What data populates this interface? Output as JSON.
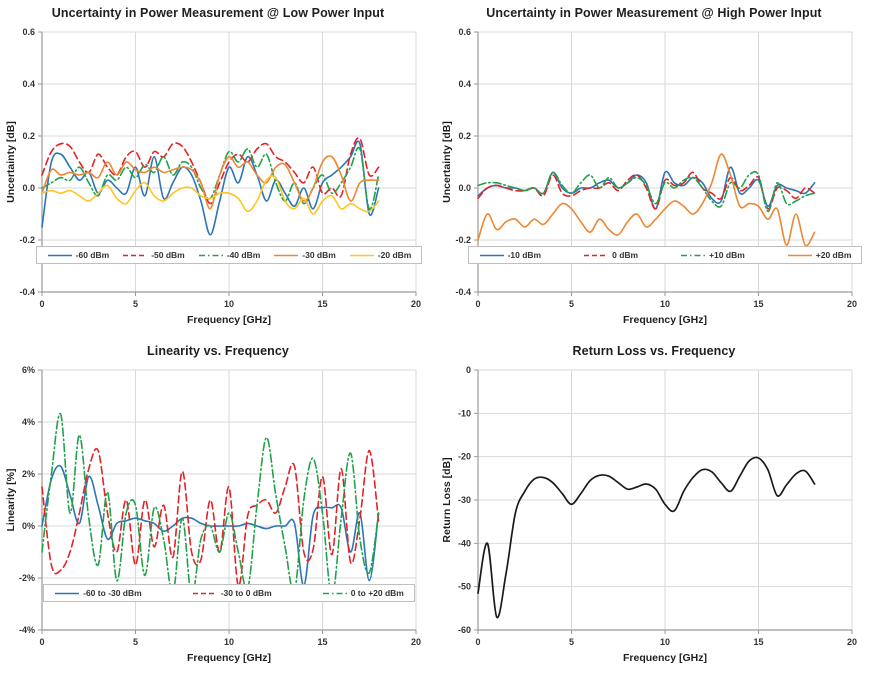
{
  "page": {
    "background": "#ffffff"
  },
  "style": {
    "grid_color": "#d9d9d9",
    "axis_color": "#9a9a9a",
    "tick_text_color": "#333333",
    "title_color": "#1f1f1f",
    "legend_border_color": "#bfbfbf",
    "series_palette": {
      "blue": "#2e75b6",
      "red": "#e32227",
      "green": "#21a24b",
      "orange": "#ed8733",
      "yellow": "#ffc425",
      "black": "#1a1a1a"
    }
  },
  "chart_data": [
    {
      "id": "uncertainty-low-power",
      "type": "line",
      "title": "Uncertainty in Power Measurement @ Low Power Input",
      "xlabel": "Frequency [GHz]",
      "ylabel": "Uncertainty [dB]",
      "xlim": [
        0,
        20
      ],
      "ylim": [
        -0.4,
        0.6
      ],
      "xticks": [
        0,
        5,
        10,
        15,
        20
      ],
      "xtick_labels": [
        "0",
        "5",
        "10",
        "15",
        "20"
      ],
      "yticks": [
        0.6,
        0.4,
        0.2,
        0.0,
        -0.2,
        -0.4
      ],
      "ytick_labels": [
        "0.6",
        "0.4",
        "0.2",
        "0.0",
        "-0.2",
        "-0.4"
      ],
      "grid": true,
      "legend": true,
      "legend_position": "bottom-inside",
      "x": [
        0,
        0.5,
        1,
        1.5,
        2,
        2.5,
        3,
        3.5,
        4,
        4.5,
        5,
        5.5,
        6,
        6.5,
        7,
        7.5,
        8,
        8.5,
        9,
        9.5,
        10,
        10.5,
        11,
        11.5,
        12,
        12.5,
        13,
        13.5,
        14,
        14.5,
        15,
        15.5,
        16,
        16.5,
        17,
        17.5,
        18
      ],
      "series": [
        {
          "name": "-60 dBm",
          "color": "blue",
          "dash": "solid",
          "values": [
            -0.15,
            0.1,
            0.13,
            0.08,
            0.03,
            0.06,
            -0.02,
            0.03,
            0.0,
            -0.02,
            0.08,
            -0.03,
            0.12,
            -0.04,
            0.02,
            0.08,
            0.05,
            -0.05,
            -0.18,
            -0.05,
            0.08,
            0.02,
            0.12,
            0.05,
            -0.05,
            0.03,
            -0.02,
            -0.07,
            0.0,
            -0.08,
            0.02,
            0.05,
            0.08,
            0.12,
            0.17,
            -0.1,
            0.0
          ]
        },
        {
          "name": "-50 dBm",
          "color": "red",
          "dash": "dashed",
          "values": [
            0.05,
            0.14,
            0.17,
            0.16,
            0.1,
            0.06,
            0.13,
            0.08,
            0.05,
            0.12,
            0.14,
            0.08,
            0.14,
            0.12,
            0.17,
            0.16,
            0.1,
            0.02,
            -0.06,
            0.02,
            0.1,
            0.13,
            0.1,
            0.15,
            0.17,
            0.12,
            0.1,
            0.06,
            0.02,
            0.08,
            -0.02,
            0.0,
            -0.03,
            0.13,
            0.19,
            0.05,
            0.08
          ]
        },
        {
          "name": "-40 dBm",
          "color": "green",
          "dash": "dashdot",
          "values": [
            0.0,
            0.02,
            0.04,
            0.03,
            0.08,
            0.02,
            -0.03,
            0.05,
            0.03,
            0.08,
            0.04,
            0.09,
            0.06,
            0.12,
            0.05,
            0.1,
            0.08,
            0.0,
            -0.04,
            0.05,
            0.14,
            0.1,
            0.15,
            0.08,
            0.13,
            0.02,
            -0.05,
            0.02,
            -0.06,
            0.0,
            0.05,
            -0.02,
            0.02,
            0.08,
            0.15,
            -0.08,
            0.05
          ]
        },
        {
          "name": "-30 dBm",
          "color": "orange",
          "dash": "solid",
          "values": [
            -0.02,
            0.07,
            0.05,
            0.06,
            0.05,
            0.06,
            0.04,
            0.1,
            0.05,
            0.1,
            0.07,
            0.06,
            0.08,
            0.06,
            0.07,
            0.08,
            0.07,
            0.02,
            -0.08,
            0.05,
            0.12,
            0.08,
            0.1,
            0.05,
            0.02,
            0.08,
            0.09,
            0.02,
            -0.05,
            0.0,
            0.1,
            0.12,
            0.05,
            -0.05,
            0.02,
            0.03,
            0.03
          ]
        },
        {
          "name": "-20 dBm",
          "color": "yellow",
          "dash": "solid",
          "values": [
            -0.02,
            -0.01,
            -0.02,
            -0.01,
            -0.03,
            -0.05,
            -0.02,
            0.01,
            -0.04,
            -0.06,
            -0.01,
            0.02,
            -0.03,
            -0.05,
            -0.02,
            0.0,
            0.0,
            -0.03,
            -0.04,
            -0.02,
            -0.02,
            -0.04,
            -0.09,
            -0.05,
            0.03,
            0.04,
            -0.05,
            -0.08,
            -0.04,
            -0.1,
            -0.05,
            -0.03,
            -0.08,
            -0.06,
            -0.08,
            -0.09,
            -0.05
          ]
        }
      ]
    },
    {
      "id": "uncertainty-high-power",
      "type": "line",
      "title": "Uncertainty in Power Measurement @ High Power Input",
      "xlabel": "Frequency [GHz]",
      "ylabel": "Uncertainty [dB]",
      "xlim": [
        0,
        20
      ],
      "ylim": [
        -0.4,
        0.6
      ],
      "xticks": [
        0,
        5,
        10,
        15,
        20
      ],
      "xtick_labels": [
        "0",
        "5",
        "10",
        "15",
        "20"
      ],
      "yticks": [
        0.6,
        0.4,
        0.2,
        0.0,
        -0.2,
        -0.4
      ],
      "ytick_labels": [
        "0.6",
        "0.4",
        "0.2",
        "0.0",
        "-0.2",
        "-0.4"
      ],
      "grid": true,
      "legend": true,
      "legend_position": "bottom-inside",
      "x": [
        0,
        0.5,
        1,
        1.5,
        2,
        2.5,
        3,
        3.5,
        4,
        4.5,
        5,
        5.5,
        6,
        6.5,
        7,
        7.5,
        8,
        8.5,
        9,
        9.5,
        10,
        10.5,
        11,
        11.5,
        12,
        12.5,
        13,
        13.5,
        14,
        14.5,
        15,
        15.5,
        16,
        16.5,
        17,
        17.5,
        18
      ],
      "series": [
        {
          "name": "-10 dBm",
          "color": "blue",
          "dash": "solid",
          "values": [
            -0.03,
            0.0,
            0.01,
            0.0,
            0.0,
            -0.01,
            0.0,
            -0.02,
            0.06,
            0.0,
            -0.02,
            0.0,
            0.0,
            0.02,
            0.03,
            0.0,
            0.02,
            0.05,
            0.02,
            -0.08,
            0.06,
            0.02,
            0.01,
            0.04,
            0.02,
            -0.04,
            -0.05,
            0.08,
            -0.02,
            0.0,
            0.03,
            -0.07,
            0.01,
            0.0,
            -0.01,
            -0.02,
            0.02
          ]
        },
        {
          "name": "0 dBm",
          "color": "red",
          "dash": "dashed",
          "values": [
            -0.04,
            0.0,
            0.01,
            0.0,
            -0.01,
            -0.01,
            0.0,
            -0.03,
            0.05,
            -0.02,
            -0.03,
            -0.01,
            0.0,
            0.0,
            0.02,
            -0.01,
            0.03,
            0.05,
            0.0,
            -0.08,
            0.03,
            0.01,
            0.02,
            0.06,
            0.0,
            -0.02,
            -0.04,
            0.04,
            -0.01,
            0.01,
            0.04,
            -0.08,
            0.0,
            -0.01,
            -0.04,
            0.0,
            -0.02
          ]
        },
        {
          "name": "+10 dBm",
          "color": "green",
          "dash": "dashdot",
          "values": [
            0.01,
            0.02,
            0.02,
            0.01,
            0.0,
            -0.01,
            0.0,
            -0.02,
            0.06,
            0.01,
            -0.02,
            0.02,
            0.05,
            0.0,
            0.04,
            0.0,
            0.02,
            0.04,
            0.01,
            -0.06,
            0.02,
            0.0,
            0.03,
            0.04,
            0.0,
            -0.05,
            -0.07,
            0.02,
            0.0,
            0.05,
            0.05,
            -0.09,
            0.02,
            -0.06,
            -0.05,
            -0.03,
            -0.02
          ]
        },
        {
          "name": "+20 dBm",
          "color": "orange",
          "dash": "solid",
          "values": [
            -0.2,
            -0.1,
            -0.16,
            -0.13,
            -0.12,
            -0.15,
            -0.12,
            -0.14,
            -0.1,
            -0.06,
            -0.08,
            -0.13,
            -0.17,
            -0.12,
            -0.16,
            -0.18,
            -0.13,
            -0.1,
            -0.15,
            -0.12,
            -0.08,
            -0.05,
            -0.07,
            -0.1,
            -0.06,
            0.02,
            0.13,
            0.05,
            -0.07,
            -0.06,
            -0.07,
            -0.12,
            -0.08,
            -0.22,
            -0.1,
            -0.22,
            -0.17
          ]
        }
      ]
    },
    {
      "id": "linearity",
      "type": "line",
      "title": "Linearity vs. Frequency",
      "xlabel": "Frequency [GHz]",
      "ylabel": "Linearity [%]",
      "xlim": [
        0,
        20
      ],
      "ylim": [
        -4,
        6
      ],
      "xticks": [
        0,
        5,
        10,
        15,
        20
      ],
      "xtick_labels": [
        "0",
        "5",
        "10",
        "15",
        "20"
      ],
      "yticks": [
        6,
        4,
        2,
        0,
        -2,
        -4
      ],
      "ytick_labels": [
        "6%",
        "4%",
        "2%",
        "0%",
        "-2%",
        "-4%"
      ],
      "grid": true,
      "legend": true,
      "legend_position": "bottom-inside",
      "x": [
        0,
        0.5,
        1,
        1.5,
        2,
        2.5,
        3,
        3.5,
        4,
        4.5,
        5,
        5.5,
        6,
        6.5,
        7,
        7.5,
        8,
        8.5,
        9,
        9.5,
        10,
        10.5,
        11,
        11.5,
        12,
        12.5,
        13,
        13.5,
        14,
        14.5,
        15,
        15.5,
        16,
        16.5,
        17,
        17.5,
        18
      ],
      "series": [
        {
          "name": "-60 to -30 dBm",
          "color": "blue",
          "dash": "solid",
          "values": [
            0.0,
            1.8,
            2.3,
            1.2,
            0.1,
            1.9,
            0.8,
            -0.5,
            0.1,
            0.2,
            0.3,
            0.2,
            0.1,
            -0.2,
            0.0,
            0.3,
            0.3,
            0.1,
            0.0,
            0.0,
            0.0,
            0.0,
            0.1,
            0.0,
            -0.1,
            0.0,
            0.0,
            0.1,
            -2.3,
            0.4,
            0.7,
            0.7,
            0.7,
            -1.0,
            0.5,
            -2.1,
            0.5
          ]
        },
        {
          "name": "-30 to 0 dBm",
          "color": "red",
          "dash": "dashed",
          "values": [
            1.5,
            -1.5,
            -1.7,
            -1.0,
            0.5,
            2.2,
            2.9,
            0.5,
            -1.0,
            1.0,
            -1.5,
            1.0,
            -0.8,
            0.8,
            -1.2,
            2.1,
            -1.0,
            -1.3,
            1.0,
            -1.0,
            1.5,
            -2.3,
            0.4,
            0.8,
            1.0,
            0.5,
            1.5,
            2.3,
            -1.0,
            -0.9,
            1.9,
            -1.1,
            2.2,
            -1.4,
            0.3,
            2.9,
            0.2
          ]
        },
        {
          "name": "0 to +20 dBm",
          "color": "green",
          "dash": "dashdot",
          "values": [
            -1.0,
            2.0,
            4.3,
            0.5,
            3.5,
            0.3,
            -1.5,
            1.3,
            -2.1,
            0.5,
            0.8,
            -1.9,
            0.7,
            -0.5,
            -2.6,
            0.3,
            -2.7,
            -0.5,
            0.0,
            -1.0,
            0.5,
            -1.0,
            -2.4,
            0.8,
            3.4,
            1.2,
            -0.8,
            -2.5,
            1.0,
            2.6,
            0.5,
            -2.7,
            0.3,
            2.8,
            -0.5,
            -1.8,
            0.5
          ]
        }
      ]
    },
    {
      "id": "return-loss",
      "type": "line",
      "title": "Return Loss vs. Frequency",
      "xlabel": "Frequency [GHz]",
      "ylabel": "Return Loss [dB]",
      "xlim": [
        0,
        20
      ],
      "ylim": [
        -60,
        0
      ],
      "xticks": [
        0,
        5,
        10,
        15,
        20
      ],
      "xtick_labels": [
        "0",
        "5",
        "10",
        "15",
        "20"
      ],
      "yticks": [
        0,
        -10,
        -20,
        -30,
        -40,
        -50,
        -60
      ],
      "ytick_labels": [
        "0",
        "-10",
        "-20",
        "-30",
        "-40",
        "-50",
        "-60"
      ],
      "grid": true,
      "legend": false,
      "x": [
        0,
        0.5,
        1,
        1.5,
        2,
        2.5,
        3,
        3.5,
        4,
        4.5,
        5,
        5.5,
        6,
        6.5,
        7,
        7.5,
        8,
        8.5,
        9,
        9.5,
        10,
        10.5,
        11,
        11.5,
        12,
        12.5,
        13,
        13.5,
        14,
        14.5,
        15,
        15.5,
        16,
        16.5,
        17,
        17.5,
        18
      ],
      "series": [
        {
          "name": "Return Loss",
          "color": "black",
          "dash": "solid",
          "values": [
            -51.5,
            -40.0,
            -57.0,
            -47.0,
            -33.0,
            -28.0,
            -25.2,
            -24.8,
            -26.0,
            -28.5,
            -31.0,
            -28.5,
            -25.5,
            -24.3,
            -24.5,
            -26.0,
            -27.5,
            -27.0,
            -26.3,
            -27.5,
            -31.0,
            -32.5,
            -28.0,
            -24.8,
            -23.0,
            -23.5,
            -26.0,
            -28.0,
            -24.5,
            -21.0,
            -20.3,
            -23.0,
            -29.0,
            -26.5,
            -24.0,
            -23.3,
            -26.3
          ]
        }
      ]
    }
  ]
}
